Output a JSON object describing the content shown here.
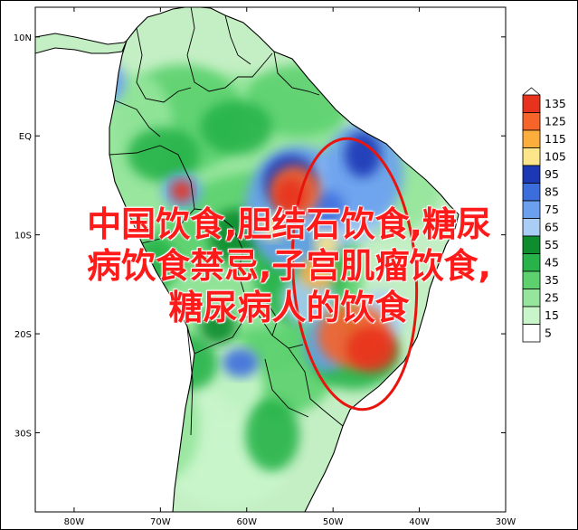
{
  "map": {
    "lat_ticks": [
      {
        "label": "10N",
        "lat": 10
      },
      {
        "label": "EQ",
        "lat": 0
      },
      {
        "label": "10S",
        "lat": -10
      },
      {
        "label": "20S",
        "lat": -20
      },
      {
        "label": "30S",
        "lat": -30
      }
    ],
    "lon_ticks": [
      {
        "label": "80W",
        "lon": -80
      },
      {
        "label": "70W",
        "lon": -70
      },
      {
        "label": "60W",
        "lon": -60
      },
      {
        "label": "50W",
        "lon": -50
      },
      {
        "label": "40W",
        "lon": -40
      },
      {
        "label": "30W",
        "lon": -30
      }
    ],
    "lon_range": [
      -84.5,
      -30
    ],
    "lat_range": [
      -38,
      13
    ],
    "legend": {
      "levels": [
        135,
        125,
        115,
        105,
        95,
        85,
        75,
        65,
        55,
        45,
        35,
        25,
        15,
        5
      ],
      "colors": [
        "#e8321e",
        "#f7642a",
        "#fcae3c",
        "#fde58a",
        "#1c38b5",
        "#3c6ddd",
        "#6aa0ee",
        "#a9cdf5",
        "#0f8c2e",
        "#28b34a",
        "#5cd16e",
        "#95e59c",
        "#c9f5cb",
        "#ffffff"
      ]
    },
    "highlight_color": "#e8150e"
  },
  "overlay": {
    "line1": "中国饮食,胆结石饮食,糖尿",
    "line2": "病饮食禁忌,子宫肌瘤饮食,",
    "line3": "糖尿病人的饮食"
  }
}
